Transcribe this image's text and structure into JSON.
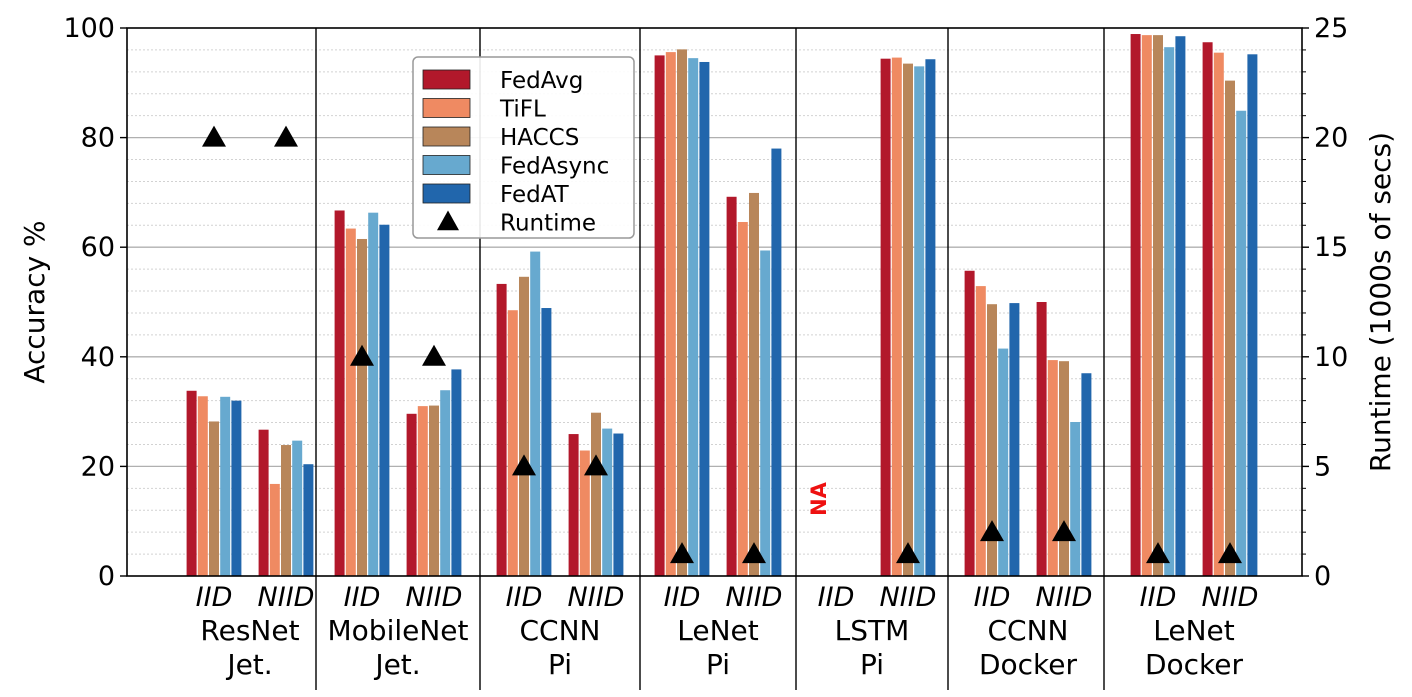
{
  "chart_data": {
    "type": "bar",
    "ylabel": "Accuracy %",
    "y2label": "Runtime (1000s of secs)",
    "ylim": [
      0,
      100
    ],
    "y2lim": [
      0,
      25
    ],
    "yticks": [
      "0",
      "20",
      "40",
      "60",
      "80",
      "100"
    ],
    "y2ticks": [
      "0",
      "5",
      "10",
      "15",
      "20",
      "25"
    ],
    "grid": "horizontal",
    "legend_position": "top-left (inside plot)",
    "groups": [
      {
        "model": "ResNet",
        "platform": "Jet."
      },
      {
        "model": "MobileNet",
        "platform": "Jet."
      },
      {
        "model": "CCNN",
        "platform": "Pi"
      },
      {
        "model": "LeNet",
        "platform": "Pi"
      },
      {
        "model": "LSTM",
        "platform": "Pi"
      },
      {
        "model": "CCNN",
        "platform": "Docker"
      },
      {
        "model": "LeNet",
        "platform": "Docker"
      }
    ],
    "conditions": [
      "IID",
      "NIID"
    ],
    "series": [
      {
        "name": "FedAvg",
        "color": "#b2182b",
        "values": [
          [
            33.8,
            26.7
          ],
          [
            66.7,
            29.6
          ],
          [
            53.3,
            25.9
          ],
          [
            95.0,
            69.2
          ],
          [
            null,
            94.4
          ],
          [
            55.7,
            50.0
          ],
          [
            98.9,
            97.4
          ]
        ]
      },
      {
        "name": "TiFL",
        "color": "#ef8a62",
        "values": [
          [
            32.8,
            16.8
          ],
          [
            63.4,
            31.0
          ],
          [
            48.5,
            22.9
          ],
          [
            95.6,
            64.6
          ],
          [
            null,
            94.6
          ],
          [
            52.9,
            39.4
          ],
          [
            98.7,
            95.5
          ]
        ]
      },
      {
        "name": "HACCS",
        "color": "#b8865a",
        "values": [
          [
            28.2,
            23.9
          ],
          [
            61.5,
            31.1
          ],
          [
            54.6,
            29.8
          ],
          [
            96.1,
            69.9
          ],
          [
            null,
            93.5
          ],
          [
            49.6,
            39.2
          ],
          [
            98.7,
            90.4
          ]
        ]
      },
      {
        "name": "FedAsync",
        "color": "#67a9cf",
        "values": [
          [
            32.7,
            24.7
          ],
          [
            66.3,
            33.9
          ],
          [
            59.2,
            26.9
          ],
          [
            94.5,
            59.4
          ],
          [
            null,
            93.0
          ],
          [
            41.5,
            28.1
          ],
          [
            96.5,
            84.9
          ]
        ]
      },
      {
        "name": "FedAT",
        "color": "#2166ac",
        "values": [
          [
            32.0,
            20.4
          ],
          [
            64.1,
            37.7
          ],
          [
            48.9,
            26.0
          ],
          [
            93.8,
            78.0
          ],
          [
            null,
            94.3
          ],
          [
            49.8,
            37.0
          ],
          [
            98.5,
            95.2
          ]
        ]
      }
    ],
    "runtime": {
      "name": "Runtime",
      "marker": "triangle",
      "values": [
        [
          20.0,
          20.0
        ],
        [
          10.0,
          10.0
        ],
        [
          5.0,
          5.0
        ],
        [
          1.0,
          1.0
        ],
        [
          null,
          1.0
        ],
        [
          2.0,
          2.0
        ],
        [
          1.0,
          1.0
        ]
      ]
    },
    "annotations": [
      {
        "text": "NA",
        "group": 4,
        "condition": "IID",
        "color": "#ee1111"
      }
    ]
  }
}
